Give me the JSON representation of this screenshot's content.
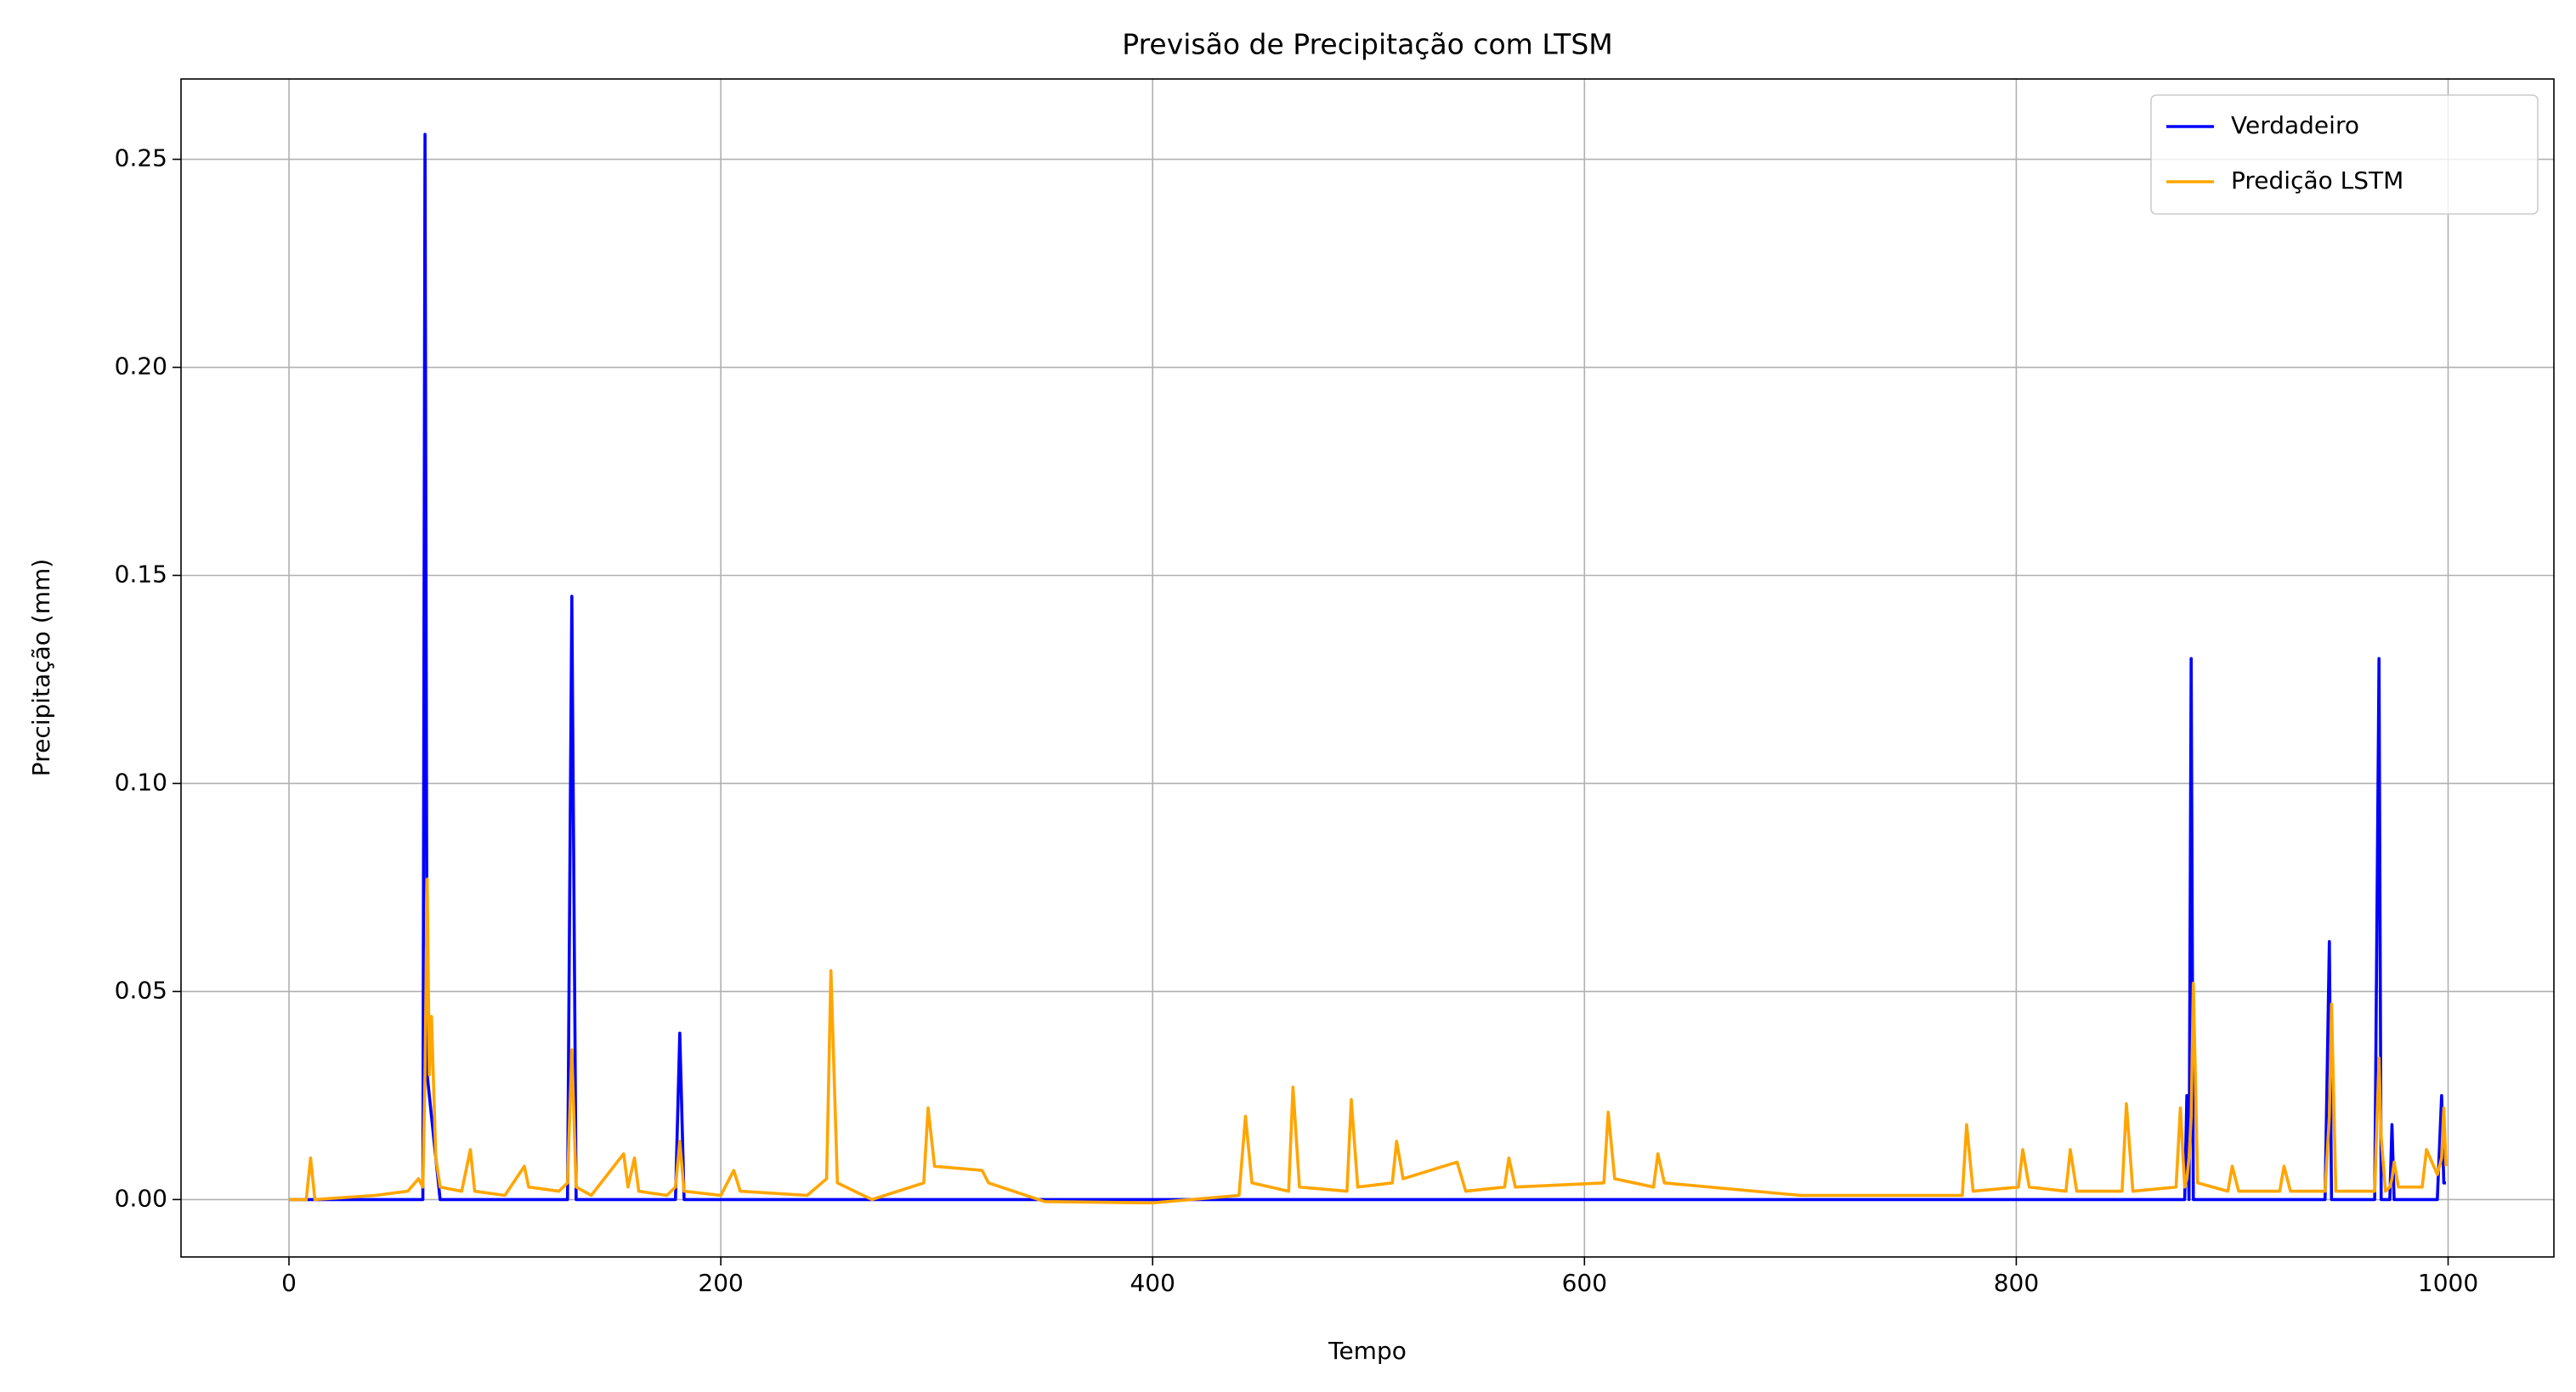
{
  "chart_data": {
    "type": "line",
    "title": "Previsão de Precipitação com LTSM",
    "xlabel": "Tempo",
    "ylabel": "Precipitação (mm)",
    "x": [
      0,
      8,
      10,
      12,
      40,
      55,
      60,
      62,
      63,
      64,
      65,
      66,
      68,
      70,
      80,
      84,
      86,
      100,
      109,
      111,
      125,
      129,
      131,
      133,
      140,
      155,
      157,
      160,
      162,
      175,
      179,
      181,
      183,
      200,
      206,
      209,
      240,
      249,
      251,
      254,
      270,
      294,
      296,
      299,
      321,
      324,
      350,
      400,
      440,
      443,
      446,
      463,
      465,
      468,
      490,
      492,
      495,
      511,
      513,
      516,
      541,
      545,
      563,
      565,
      568,
      609,
      611,
      614,
      632,
      634,
      637,
      700,
      775,
      777,
      780,
      801,
      803,
      806,
      823,
      825,
      828,
      849,
      851,
      854,
      874,
      876,
      878,
      879,
      880,
      881,
      882,
      884,
      898,
      900,
      903,
      922,
      924,
      927,
      943,
      945,
      946,
      948,
      966,
      968,
      969,
      971,
      973,
      974,
      975,
      977,
      988,
      990,
      995,
      997,
      998,
      999
    ],
    "series": [
      {
        "name": "Verdadeiro",
        "color": "#0000ff",
        "values": [
          0,
          0,
          0,
          0,
          0,
          0,
          0,
          0,
          0.256,
          0.03,
          0.025,
          0.02,
          0.01,
          0,
          0,
          0,
          0,
          0,
          0,
          0,
          0,
          0,
          0.145,
          0,
          0,
          0,
          0,
          0,
          0,
          0,
          0,
          0.04,
          0,
          0,
          0,
          0,
          0,
          0,
          0,
          0,
          0,
          0,
          0,
          0,
          0,
          0,
          0,
          0,
          0,
          0,
          0,
          0,
          0,
          0,
          0,
          0,
          0,
          0,
          0,
          0,
          0,
          0,
          0,
          0,
          0,
          0,
          0,
          0,
          0,
          0,
          0,
          0,
          0,
          0,
          0,
          0,
          0,
          0,
          0,
          0,
          0,
          0,
          0,
          0,
          0,
          0,
          0,
          0.025,
          0,
          0.13,
          0,
          0,
          0,
          0,
          0,
          0,
          0,
          0,
          0,
          0.062,
          0,
          0,
          0,
          0.13,
          0,
          0,
          0,
          0.018,
          0,
          0,
          0,
          0,
          0,
          0.025,
          0.004,
          0.004
        ]
      },
      {
        "name": "Predição LSTM",
        "color": "#ffa500",
        "values": [
          0,
          0,
          0.01,
          0,
          0.001,
          0.002,
          0.005,
          0.003,
          0.03,
          0.077,
          0.03,
          0.044,
          0.01,
          0.003,
          0.002,
          0.012,
          0.002,
          0.001,
          0.008,
          0.003,
          0.002,
          0.004,
          0.036,
          0.003,
          0.001,
          0.011,
          0.003,
          0.01,
          0.002,
          0.001,
          0.003,
          0.014,
          0.002,
          0.001,
          0.007,
          0.002,
          0.001,
          0.005,
          0.055,
          0.004,
          0,
          0.004,
          0.022,
          0.008,
          0.007,
          0.004,
          -0.0005,
          -0.0008,
          0.001,
          0.02,
          0.004,
          0.002,
          0.027,
          0.003,
          0.002,
          0.024,
          0.003,
          0.004,
          0.014,
          0.005,
          0.009,
          0.002,
          0.003,
          0.01,
          0.003,
          0.004,
          0.021,
          0.005,
          0.003,
          0.011,
          0.004,
          0.001,
          0.001,
          0.018,
          0.002,
          0.003,
          0.012,
          0.003,
          0.002,
          0.012,
          0.002,
          0.002,
          0.023,
          0.002,
          0.003,
          0.022,
          0.003,
          0.005,
          0.01,
          0.02,
          0.052,
          0.004,
          0.002,
          0.008,
          0.002,
          0.002,
          0.008,
          0.002,
          0.002,
          0.02,
          0.047,
          0.002,
          0.002,
          0.034,
          0.015,
          0.002,
          0.003,
          0.005,
          0.009,
          0.003,
          0.003,
          0.012,
          0.006,
          0.01,
          0.022,
          0.008
        ]
      }
    ],
    "xlim": [
      -50,
      1049
    ],
    "ylim": [
      -0.0138,
      0.2693
    ],
    "xticks": [
      0,
      200,
      400,
      600,
      800,
      1000
    ],
    "yticks": [
      {
        "value": 0,
        "label": "0.00"
      },
      {
        "value": 0.05,
        "label": "0.05"
      },
      {
        "value": 0.1,
        "label": "0.10"
      },
      {
        "value": 0.15,
        "label": "0.15"
      },
      {
        "value": 0.2,
        "label": "0.20"
      },
      {
        "value": 0.25,
        "label": "0.25"
      }
    ],
    "grid": true,
    "legend": "upper right"
  }
}
